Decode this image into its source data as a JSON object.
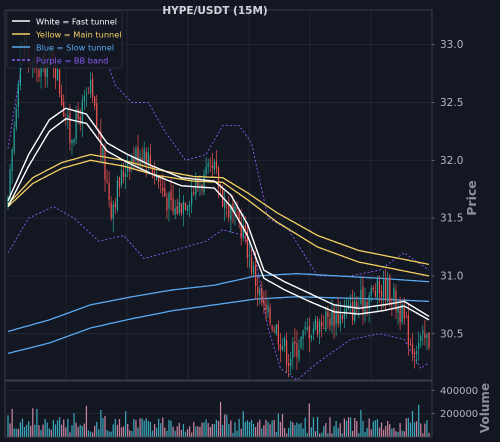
{
  "chart_data": {
    "type": "line",
    "title": "HYPE/USDT (15M)",
    "ylabel": "Price",
    "volume_label": "Volume",
    "ylim": [
      30.1,
      33.3
    ],
    "yticks": [
      30.5,
      31.0,
      31.5,
      32.0,
      32.5,
      33.0
    ],
    "ytick_labels": [
      "30.5",
      "31.0",
      "31.5",
      "32.0",
      "32.5",
      "33.0"
    ],
    "volume_ylim": [
      0,
      480000
    ],
    "volume_ticks": [
      200000,
      400000
    ],
    "volume_tick_labels": [
      "200000",
      "400000"
    ],
    "grid": true,
    "legend_position": "top-left",
    "legend": [
      {
        "label": "White = Fast tunnel",
        "color": "#ffffff",
        "style": "solid"
      },
      {
        "label": "Yellow = Main tunnel",
        "color": "#f5d061",
        "style": "solid"
      },
      {
        "label": "Blue = Slow tunnel",
        "color": "#5aa9f0",
        "style": "solid"
      },
      {
        "label": "Purple = BB band",
        "color": "#8a5cf6",
        "style": "dashed"
      }
    ],
    "colors": {
      "up": "#26a69a",
      "down": "#ef5350",
      "vol_up": "#3aa5b8",
      "vol_down": "#c5839f",
      "background": "#131722",
      "grid": "#2a2e39",
      "axis_text": "#b2b5be",
      "label_text": "#8c8f99"
    },
    "num_bars": 205,
    "price_path": [
      [
        0,
        31.6
      ],
      [
        6,
        33.0
      ],
      [
        14,
        32.75
      ],
      [
        22,
        32.9
      ],
      [
        30,
        32.2
      ],
      [
        40,
        32.6
      ],
      [
        50,
        31.6
      ],
      [
        58,
        32.0
      ],
      [
        66,
        32.1
      ],
      [
        80,
        31.55
      ],
      [
        92,
        31.8
      ],
      [
        100,
        31.9
      ],
      [
        106,
        31.6
      ],
      [
        114,
        31.4
      ],
      [
        118,
        31.1
      ],
      [
        124,
        30.7
      ],
      [
        130,
        30.55
      ],
      [
        136,
        30.3
      ],
      [
        146,
        30.55
      ],
      [
        156,
        30.65
      ],
      [
        166,
        30.7
      ],
      [
        176,
        30.85
      ],
      [
        184,
        30.9
      ],
      [
        190,
        30.7
      ],
      [
        196,
        30.4
      ],
      [
        204,
        30.45
      ]
    ],
    "fast_tunnel_upper": [
      [
        0,
        31.65
      ],
      [
        10,
        32.05
      ],
      [
        20,
        32.35
      ],
      [
        28,
        32.45
      ],
      [
        38,
        32.4
      ],
      [
        48,
        32.15
      ],
      [
        58,
        32.05
      ],
      [
        70,
        31.95
      ],
      [
        84,
        31.85
      ],
      [
        100,
        31.82
      ],
      [
        108,
        31.7
      ],
      [
        116,
        31.45
      ],
      [
        124,
        31.05
      ],
      [
        134,
        30.95
      ],
      [
        146,
        30.85
      ],
      [
        158,
        30.75
      ],
      [
        170,
        30.72
      ],
      [
        182,
        30.75
      ],
      [
        192,
        30.78
      ],
      [
        204,
        30.65
      ]
    ],
    "fast_tunnel_lower": [
      [
        0,
        31.6
      ],
      [
        10,
        31.95
      ],
      [
        20,
        32.25
      ],
      [
        28,
        32.36
      ],
      [
        38,
        32.32
      ],
      [
        48,
        32.08
      ],
      [
        58,
        31.98
      ],
      [
        70,
        31.88
      ],
      [
        84,
        31.78
      ],
      [
        100,
        31.76
      ],
      [
        108,
        31.6
      ],
      [
        116,
        31.35
      ],
      [
        124,
        30.98
      ],
      [
        134,
        30.88
      ],
      [
        146,
        30.78
      ],
      [
        158,
        30.69
      ],
      [
        170,
        30.67
      ],
      [
        182,
        30.7
      ],
      [
        192,
        30.74
      ],
      [
        204,
        30.62
      ]
    ],
    "main_tunnel_upper": [
      [
        0,
        31.62
      ],
      [
        12,
        31.85
      ],
      [
        26,
        31.98
      ],
      [
        40,
        32.05
      ],
      [
        56,
        32.0
      ],
      [
        72,
        31.92
      ],
      [
        90,
        31.86
      ],
      [
        104,
        31.85
      ],
      [
        116,
        31.72
      ],
      [
        130,
        31.55
      ],
      [
        150,
        31.35
      ],
      [
        170,
        31.22
      ],
      [
        190,
        31.15
      ],
      [
        204,
        31.1
      ]
    ],
    "main_tunnel_lower": [
      [
        0,
        31.6
      ],
      [
        12,
        31.8
      ],
      [
        26,
        31.93
      ],
      [
        40,
        32.0
      ],
      [
        56,
        31.95
      ],
      [
        72,
        31.87
      ],
      [
        90,
        31.82
      ],
      [
        104,
        31.81
      ],
      [
        116,
        31.66
      ],
      [
        130,
        31.47
      ],
      [
        150,
        31.25
      ],
      [
        170,
        31.12
      ],
      [
        190,
        31.05
      ],
      [
        204,
        31.0
      ]
    ],
    "slow_tunnel_upper": [
      [
        0,
        30.52
      ],
      [
        20,
        30.62
      ],
      [
        40,
        30.75
      ],
      [
        60,
        30.82
      ],
      [
        80,
        30.88
      ],
      [
        100,
        30.92
      ],
      [
        120,
        31.0
      ],
      [
        140,
        31.02
      ],
      [
        160,
        31.0
      ],
      [
        180,
        30.98
      ],
      [
        204,
        30.95
      ]
    ],
    "slow_tunnel_lower": [
      [
        0,
        30.33
      ],
      [
        20,
        30.42
      ],
      [
        40,
        30.55
      ],
      [
        60,
        30.63
      ],
      [
        80,
        30.7
      ],
      [
        100,
        30.75
      ],
      [
        120,
        30.8
      ],
      [
        140,
        30.82
      ],
      [
        160,
        30.81
      ],
      [
        180,
        30.8
      ],
      [
        204,
        30.78
      ]
    ],
    "bb_upper": [
      [
        0,
        32.1
      ],
      [
        10,
        33.2
      ],
      [
        30,
        33.2
      ],
      [
        44,
        33.05
      ],
      [
        52,
        32.65
      ],
      [
        60,
        32.5
      ],
      [
        68,
        32.5
      ],
      [
        76,
        32.25
      ],
      [
        86,
        32.0
      ],
      [
        96,
        32.05
      ],
      [
        104,
        32.3
      ],
      [
        112,
        32.3
      ],
      [
        118,
        32.15
      ],
      [
        126,
        31.5
      ],
      [
        136,
        31.4
      ],
      [
        150,
        31.0
      ],
      [
        166,
        31.0
      ],
      [
        180,
        31.05
      ],
      [
        192,
        31.2
      ],
      [
        204,
        31.05
      ]
    ],
    "bb_lower": [
      [
        0,
        31.2
      ],
      [
        10,
        31.5
      ],
      [
        22,
        31.6
      ],
      [
        32,
        31.5
      ],
      [
        44,
        31.3
      ],
      [
        56,
        31.35
      ],
      [
        66,
        31.15
      ],
      [
        76,
        31.2
      ],
      [
        86,
        31.25
      ],
      [
        96,
        31.3
      ],
      [
        104,
        31.4
      ],
      [
        114,
        31.35
      ],
      [
        120,
        31.15
      ],
      [
        126,
        30.55
      ],
      [
        132,
        30.2
      ],
      [
        140,
        30.1
      ],
      [
        150,
        30.25
      ],
      [
        166,
        30.45
      ],
      [
        180,
        30.5
      ],
      [
        192,
        30.45
      ],
      [
        200,
        30.2
      ],
      [
        204,
        30.25
      ]
    ]
  }
}
